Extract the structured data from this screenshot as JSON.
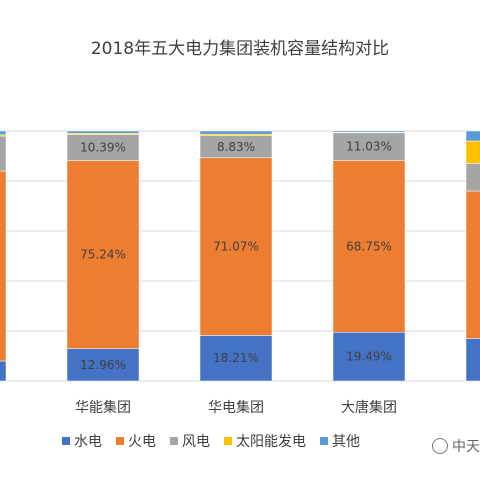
{
  "chart_data": {
    "type": "bar",
    "stacked": true,
    "percent": true,
    "title": "2018年五大电力集团装机容量结构对比",
    "categories": [
      "国能集团",
      "华能集团",
      "华电集团",
      "大唐集团",
      "国家电投"
    ],
    "visible_category_labels": [
      "团",
      "华能集团",
      "华电集团",
      "大唐集团",
      "国家"
    ],
    "series": [
      {
        "name": "水电",
        "color": "#4472C4",
        "values": [
          8,
          12.96,
          18.21,
          19.49,
          17
        ]
      },
      {
        "name": "火电",
        "color": "#ED7D31",
        "values": [
          76,
          75.24,
          71.07,
          68.75,
          59
        ]
      },
      {
        "name": "风电",
        "color": "#A5A5A5",
        "values": [
          14,
          10.39,
          8.83,
          11.03,
          11
        ]
      },
      {
        "name": "太阳能发电",
        "color": "#FFC000",
        "values": [
          0.5,
          0.5,
          0.6,
          0.2,
          9
        ]
      },
      {
        "name": "其他",
        "color": "#5B9BD5",
        "values": [
          1.5,
          0.91,
          1.29,
          0.53,
          4
        ]
      }
    ],
    "data_labels": [
      [
        null,
        null,
        null,
        null,
        null
      ],
      [
        "12.96%",
        "75.24%",
        "10.39%",
        null,
        null
      ],
      [
        "18.21%",
        "71.07%",
        "8.83%",
        null,
        null
      ],
      [
        "19.49%",
        "68.75%",
        "11.03%",
        null,
        null
      ],
      [
        null,
        null,
        null,
        null,
        null
      ]
    ],
    "ylim": [
      0,
      100
    ],
    "grid": true,
    "legend": "bottom"
  },
  "watermark": {
    "text": "中天"
  }
}
